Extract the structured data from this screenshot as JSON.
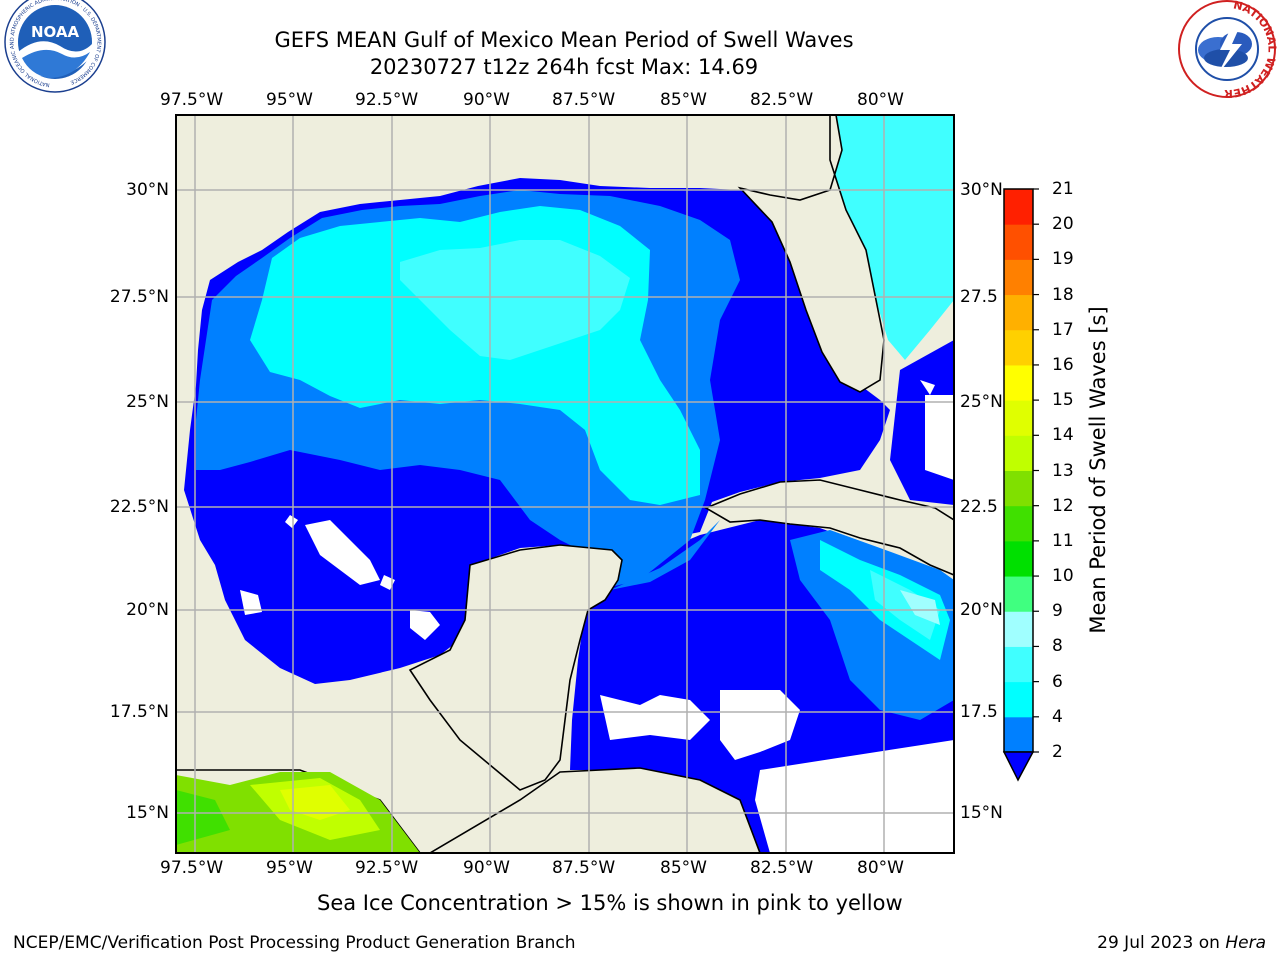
{
  "header": {
    "title_line1": "GEFS MEAN Gulf of Mexico Mean Period of Swell Waves",
    "title_line2": "20230727 t12z 264h fcst   Max: 14.69"
  },
  "logos": {
    "left": "NOAA",
    "left_ring": "NATIONAL OCEANIC AND ATMOSPHERIC ADMINISTRATION · U.S. DEPARTMENT OF COMMERCE",
    "right_ring": "NATIONAL WEATHER SERVICE"
  },
  "map": {
    "lon_labels": [
      "97.5°W",
      "95°W",
      "92.5°W",
      "90°W",
      "87.5°W",
      "85°W",
      "82.5°W",
      "80°W"
    ],
    "lat_labels": [
      "30°N",
      "27.5°N",
      "25°N",
      "22.5°N",
      "20°N",
      "17.5°N",
      "15°N"
    ],
    "lat_labels_right": [
      "30°N",
      "27.5",
      "25°N",
      "22.5",
      "20°N",
      "17.5",
      "15°N"
    ],
    "land_color": "#eeeedd",
    "grid_color": "#b0b0b0"
  },
  "colorbar": {
    "label": "Mean Period of Swell Waves [s]",
    "ticks": [
      "21",
      "20",
      "19",
      "18",
      "17",
      "16",
      "15",
      "14",
      "13",
      "12",
      "11",
      "10",
      "9",
      "8",
      "6",
      "4",
      "2"
    ],
    "colors": [
      "#0000ff",
      "#0080ff",
      "#00ffff",
      "#40ffff",
      "#a0ffff",
      "#40ff80",
      "#00e000",
      "#40e000",
      "#80e000",
      "#c0ff00",
      "#e0ff00",
      "#ffff00",
      "#ffd000",
      "#ffb000",
      "#ff8000",
      "#ff5000",
      "#ff2000",
      "#ff0000"
    ]
  },
  "footer": {
    "note": "Sea Ice Concentration > 15% is shown in pink to yellow",
    "left": "NCEP/EMC/Verification Post Processing Product Generation Branch",
    "right_date": "29 Jul 2023 on ",
    "right_machine": "Hera"
  }
}
